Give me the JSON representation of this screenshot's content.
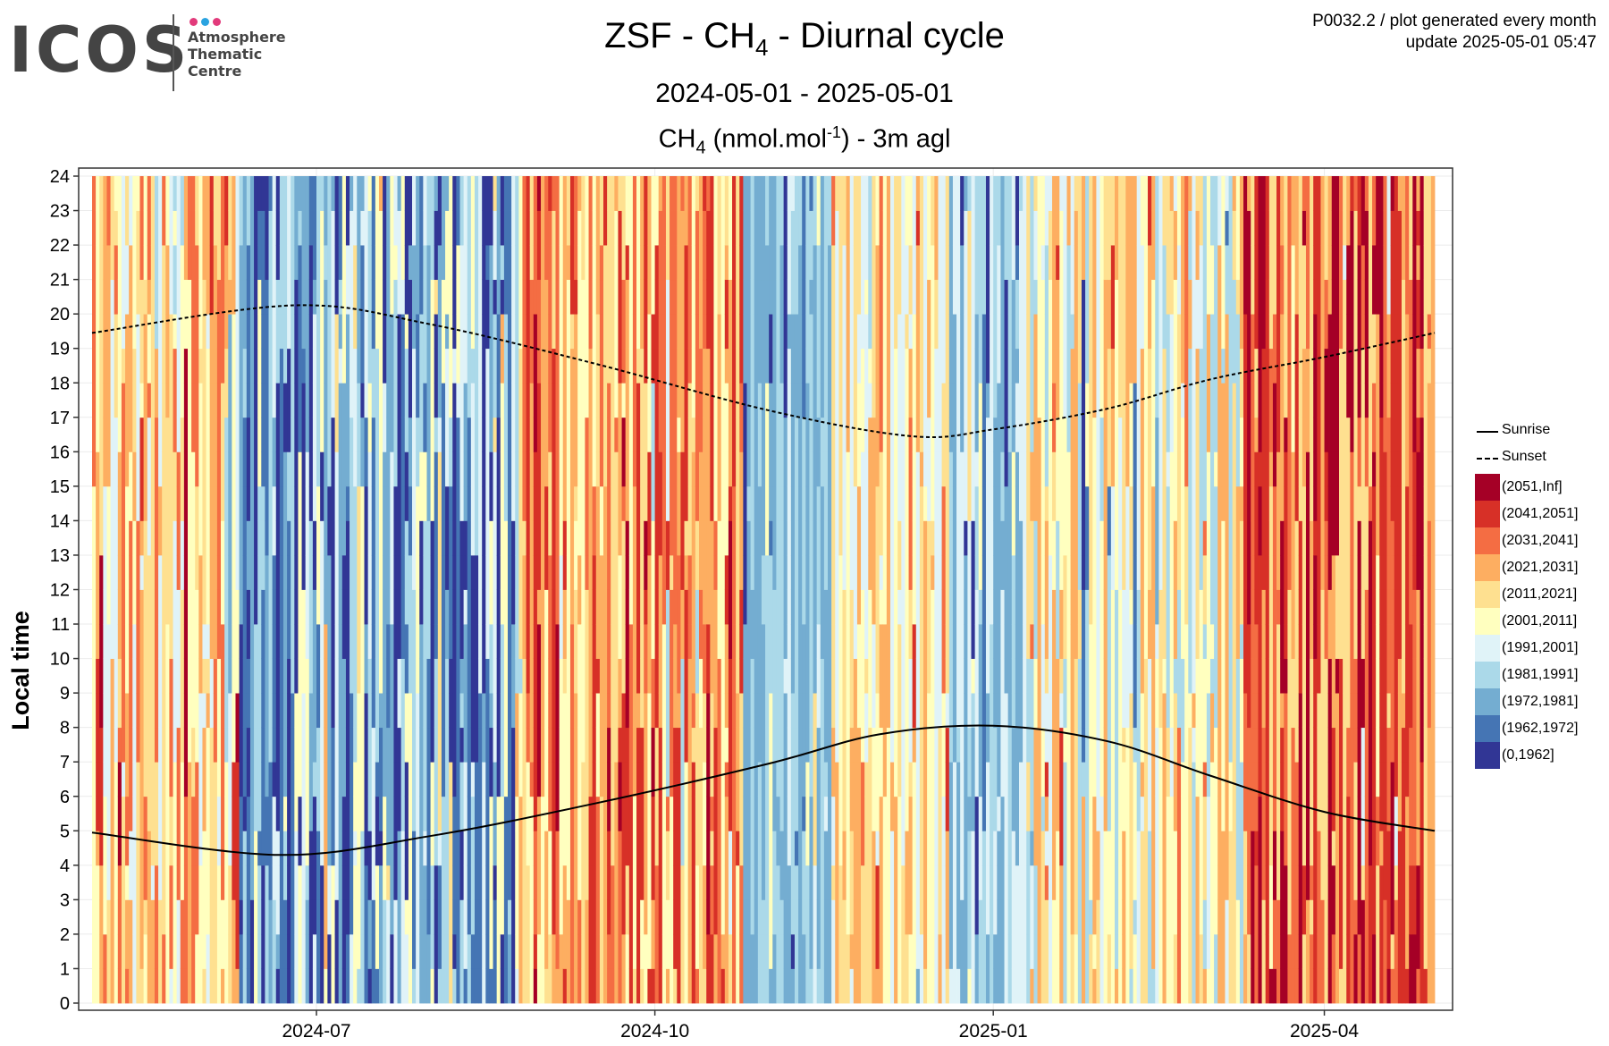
{
  "logo": {
    "wordmark": "ICOS",
    "lines": [
      "Atmosphere",
      "Thematic",
      "Centre"
    ],
    "dot_colors": [
      "#e23a7b",
      "#2aa3e0",
      "#e23a7b"
    ]
  },
  "header": {
    "title_prefix": "ZSF - CH",
    "title_sub": "4",
    "title_suffix": " - Diurnal cycle",
    "subtitle": "2024-05-01 - 2025-05-01",
    "plot_title_prefix": "CH",
    "plot_title_sub": "4",
    "plot_title_mid": " (nmol.mol",
    "plot_title_sup": "-1",
    "plot_title_suffix": ") - 3m agl",
    "meta_line1": "P0032.2 / plot generated every month",
    "meta_line2": "update  2025-05-01 05:47"
  },
  "chart_data": {
    "type": "heatmap",
    "xlabel": "",
    "ylabel": "Local time",
    "x_range": [
      "2024-05-01",
      "2025-05-01"
    ],
    "x_ticks": [
      "2024-07",
      "2024-10",
      "2025-01",
      "2025-04"
    ],
    "y_range": [
      0,
      24
    ],
    "y_ticks": [
      0,
      1,
      2,
      3,
      4,
      5,
      6,
      7,
      8,
      9,
      10,
      11,
      12,
      13,
      14,
      15,
      16,
      17,
      18,
      19,
      20,
      21,
      22,
      23,
      24
    ],
    "grid": true,
    "legend_placement": "right",
    "lines": [
      {
        "name": "Sunrise",
        "style": "solid",
        "points": [
          [
            "2024-05-01",
            4.95
          ],
          [
            "2024-06-21",
            4.3
          ],
          [
            "2024-08-01",
            4.85
          ],
          [
            "2024-09-15",
            5.8
          ],
          [
            "2024-11-01",
            6.95
          ],
          [
            "2024-12-01",
            7.8
          ],
          [
            "2025-01-01",
            8.05
          ],
          [
            "2025-02-01",
            7.6
          ],
          [
            "2025-03-01",
            6.6
          ],
          [
            "2025-04-01",
            5.55
          ],
          [
            "2025-05-01",
            5.0
          ]
        ]
      },
      {
        "name": "Sunset",
        "style": "dashed",
        "points": [
          [
            "2024-05-01",
            19.45
          ],
          [
            "2024-06-25",
            20.25
          ],
          [
            "2024-08-01",
            19.7
          ],
          [
            "2024-09-15",
            18.55
          ],
          [
            "2024-11-01",
            17.2
          ],
          [
            "2024-12-10",
            16.45
          ],
          [
            "2025-01-01",
            16.65
          ],
          [
            "2025-02-01",
            17.25
          ],
          [
            "2025-03-01",
            18.1
          ],
          [
            "2025-04-01",
            18.75
          ],
          [
            "2025-05-01",
            19.45
          ]
        ]
      }
    ],
    "color_bins": [
      {
        "label": "(2051,Inf]",
        "color": "#a50026"
      },
      {
        "label": "(2041,2051]",
        "color": "#d73027"
      },
      {
        "label": "(2031,2041]",
        "color": "#f46d43"
      },
      {
        "label": "(2021,2031]",
        "color": "#fdae61"
      },
      {
        "label": "(2011,2021]",
        "color": "#fee090"
      },
      {
        "label": "(2001,2011]",
        "color": "#ffffbf"
      },
      {
        "label": "(1991,2001]",
        "color": "#e0f3f8"
      },
      {
        "label": "(1981,1991]",
        "color": "#abd9e9"
      },
      {
        "label": "(1972,1981]",
        "color": "#74add1"
      },
      {
        "label": "(1962,1972]",
        "color": "#4575b4"
      },
      {
        "label": "(0,1962]",
        "color": "#313695"
      }
    ],
    "daily_profile": [
      {
        "start": "2024-05-01",
        "end": "2024-06-10",
        "typical_bins": [
          2,
          3,
          4,
          5,
          6
        ]
      },
      {
        "start": "2024-06-10",
        "end": "2024-08-25",
        "typical_bins": [
          5,
          6,
          7,
          8,
          9,
          10
        ]
      },
      {
        "start": "2024-08-25",
        "end": "2024-10-25",
        "typical_bins": [
          1,
          2,
          3,
          4,
          5
        ]
      },
      {
        "start": "2024-10-25",
        "end": "2024-11-18",
        "typical_bins": [
          7,
          8
        ]
      },
      {
        "start": "2024-11-18",
        "end": "2024-12-20",
        "typical_bins": [
          3,
          4,
          5,
          6
        ]
      },
      {
        "start": "2024-12-20",
        "end": "2025-01-10",
        "typical_bins": [
          6,
          7,
          8
        ]
      },
      {
        "start": "2025-01-10",
        "end": "2025-03-10",
        "typical_bins": [
          3,
          4,
          5,
          6,
          7
        ]
      },
      {
        "start": "2025-03-10",
        "end": "2025-05-01",
        "typical_bins": [
          0,
          1,
          2,
          3,
          4
        ]
      }
    ]
  },
  "legend": {
    "sunrise_label": "Sunrise",
    "sunset_label": "Sunset"
  }
}
